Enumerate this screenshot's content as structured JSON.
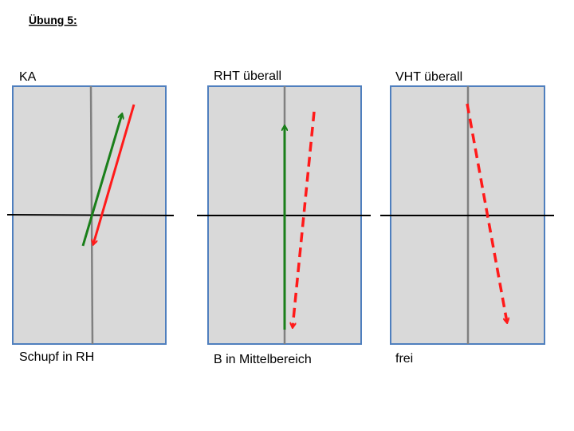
{
  "header": {
    "title": "Übung 5:"
  },
  "panels": [
    {
      "label": "KA",
      "caption": "Schupf in RH"
    },
    {
      "label": "RHT überall",
      "caption": "B in Mittelbereich"
    },
    {
      "label": "VHT überall",
      "caption": "frei"
    }
  ]
}
